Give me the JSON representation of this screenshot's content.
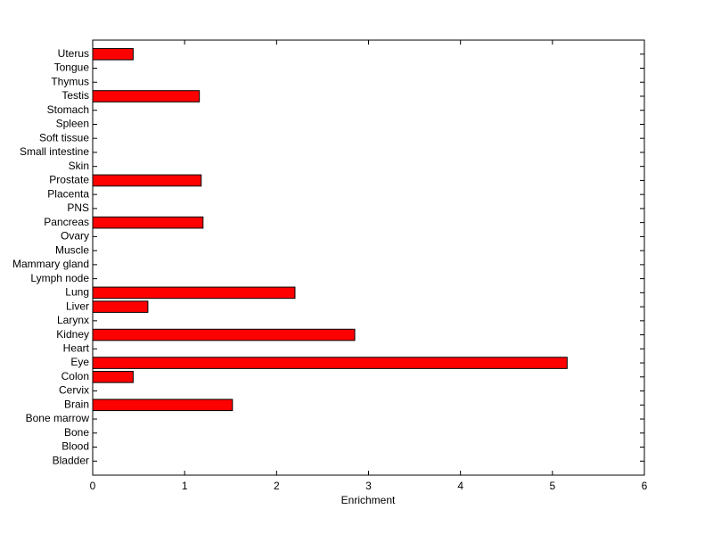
{
  "chart_data": {
    "type": "barh",
    "x_label": "Enrichment",
    "categories": [
      "Bladder",
      "Blood",
      "Bone",
      "Bone marrow",
      "Brain",
      "Cervix",
      "Colon",
      "Eye",
      "Heart",
      "Kidney",
      "Larynx",
      "Liver",
      "Lung",
      "Lymph node",
      "Mammary gland",
      "Muscle",
      "Ovary",
      "Pancreas",
      "PNS",
      "Placenta",
      "Prostate",
      "Skin",
      "Small intestine",
      "Soft tissue",
      "Spleen",
      "Stomach",
      "Testis",
      "Thymus",
      "Tongue",
      "Uterus"
    ],
    "values": [
      0,
      0,
      0,
      0,
      1.52,
      0,
      0.44,
      5.16,
      0,
      2.85,
      0,
      0.6,
      2.2,
      0,
      0,
      0,
      0,
      1.2,
      0,
      0,
      1.18,
      0,
      0,
      0,
      0,
      0,
      1.16,
      0,
      0,
      0.44
    ],
    "color": "#ff0000",
    "xlim": [
      0,
      6
    ],
    "xticks": [
      0,
      1,
      2,
      3,
      4,
      5,
      6
    ]
  }
}
